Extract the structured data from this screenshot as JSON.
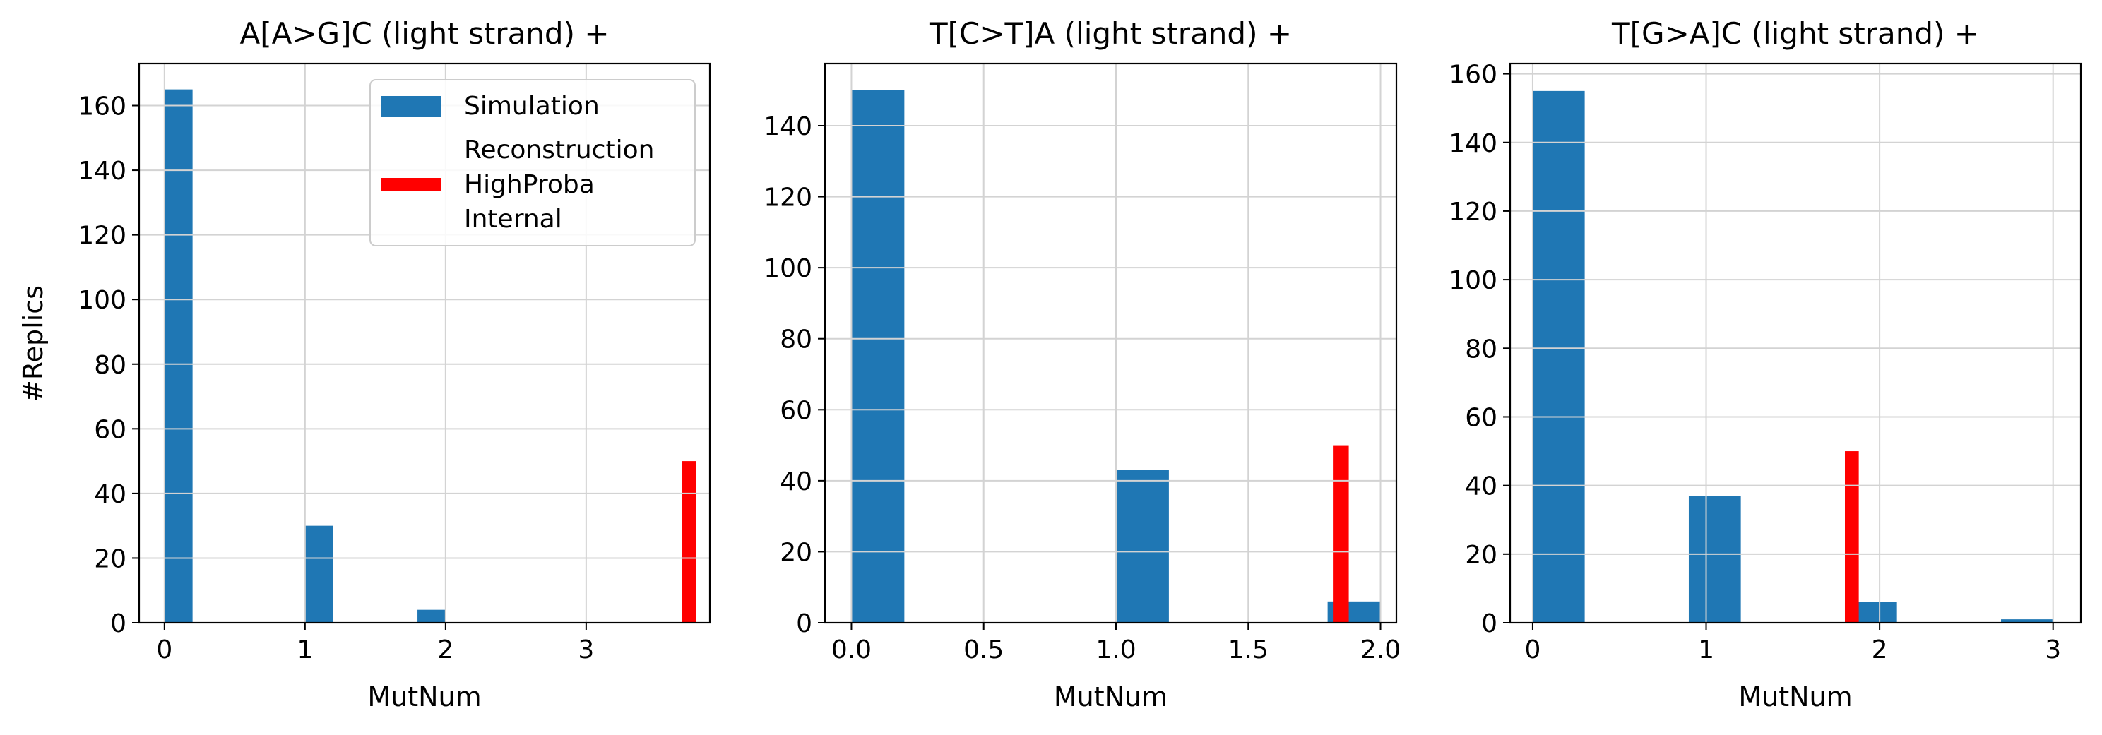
{
  "figure": {
    "ylabel": "#Replics"
  },
  "legend": {
    "placement": "top-right",
    "entries": [
      {
        "label": "Simulation",
        "color": "#1f77b4"
      },
      {
        "label": "Reconstruction\nHighProba\nInternal",
        "color": "#ff0000"
      }
    ]
  },
  "chart_data": [
    {
      "type": "bar",
      "title": "A[A>G]C   (light strand) +",
      "xlabel": "MutNum",
      "ylabel": "#Replics",
      "xlim": [
        -0.18,
        3.88
      ],
      "ylim": [
        0,
        173
      ],
      "xticks": [
        0,
        1,
        2,
        3
      ],
      "xtick_labels": [
        "0",
        "1",
        "2",
        "3"
      ],
      "yticks": [
        0,
        20,
        40,
        60,
        80,
        100,
        120,
        140,
        160
      ],
      "grid": true,
      "legend": true,
      "series": [
        {
          "name": "Simulation",
          "color": "#1f77b4",
          "bars": [
            {
              "x0": 0.0,
              "x1": 0.2,
              "value": 165
            },
            {
              "x0": 1.0,
              "x1": 1.2,
              "value": 30
            },
            {
              "x0": 1.8,
              "x1": 2.0,
              "value": 4
            }
          ]
        },
        {
          "name": "Reconstruction HighProba Internal",
          "color": "#ff0000",
          "bars": [
            {
              "x0": 3.68,
              "x1": 3.78,
              "value": 50
            }
          ]
        }
      ]
    },
    {
      "type": "bar",
      "title": "T[C>T]A   (light strand) +",
      "xlabel": "MutNum",
      "ylabel": "",
      "xlim": [
        -0.1,
        2.06
      ],
      "ylim": [
        0,
        157.5
      ],
      "xticks": [
        0.0,
        0.5,
        1.0,
        1.5,
        2.0
      ],
      "xtick_labels": [
        "0.0",
        "0.5",
        "1.0",
        "1.5",
        "2.0"
      ],
      "yticks": [
        0,
        20,
        40,
        60,
        80,
        100,
        120,
        140
      ],
      "grid": true,
      "legend": false,
      "series": [
        {
          "name": "Simulation",
          "color": "#1f77b4",
          "bars": [
            {
              "x0": 0.0,
              "x1": 0.2,
              "value": 150
            },
            {
              "x0": 1.0,
              "x1": 1.2,
              "value": 43
            },
            {
              "x0": 1.8,
              "x1": 2.0,
              "value": 6
            }
          ]
        },
        {
          "name": "Reconstruction HighProba Internal",
          "color": "#ff0000",
          "bars": [
            {
              "x0": 1.82,
              "x1": 1.88,
              "value": 50
            }
          ]
        }
      ]
    },
    {
      "type": "bar",
      "title": "T[G>A]C   (light strand) +",
      "xlabel": "MutNum",
      "ylabel": "",
      "xlim": [
        -0.13,
        3.16
      ],
      "ylim": [
        0,
        163
      ],
      "xticks": [
        0,
        1,
        2,
        3
      ],
      "xtick_labels": [
        "0",
        "1",
        "2",
        "3"
      ],
      "yticks": [
        0,
        20,
        40,
        60,
        80,
        100,
        120,
        140,
        160
      ],
      "grid": true,
      "legend": false,
      "series": [
        {
          "name": "Simulation",
          "color": "#1f77b4",
          "bars": [
            {
              "x0": 0.0,
              "x1": 0.3,
              "value": 155
            },
            {
              "x0": 0.9,
              "x1": 1.2,
              "value": 37
            },
            {
              "x0": 1.8,
              "x1": 2.1,
              "value": 6
            },
            {
              "x0": 2.7,
              "x1": 3.0,
              "value": 1
            }
          ]
        },
        {
          "name": "Reconstruction HighProba Internal",
          "color": "#ff0000",
          "bars": [
            {
              "x0": 1.8,
              "x1": 1.88,
              "value": 50
            }
          ]
        }
      ]
    }
  ]
}
